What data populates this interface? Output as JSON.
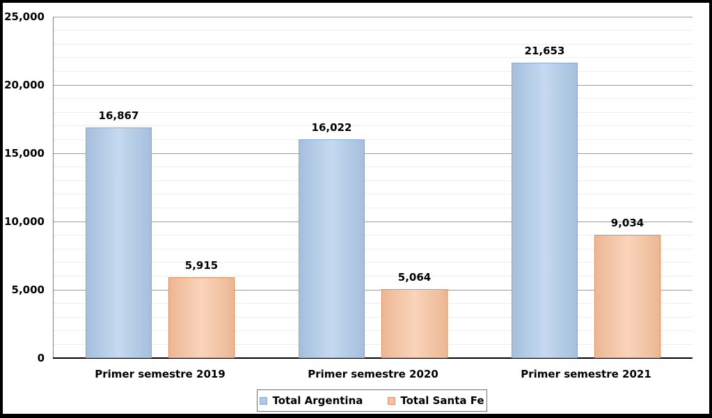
{
  "chart_data": {
    "type": "bar",
    "title": "",
    "xlabel": "",
    "ylabel": "",
    "categories": [
      "Primer semestre 2019",
      "Primer semestre 2020",
      "Primer semestre 2021"
    ],
    "series": [
      {
        "name": "Total Argentina",
        "values": [
          16867,
          16022,
          21653
        ],
        "value_labels": [
          "16,867",
          "16,022",
          "21,653"
        ],
        "fill_color": "#adc9e9",
        "border_color": "#83aad7"
      },
      {
        "name": "Total Santa Fe",
        "values": [
          5915,
          5064,
          9034
        ],
        "value_labels": [
          "5,915",
          "5,064",
          "9,034"
        ],
        "fill_color": "#f8c19d",
        "border_color": "#e58c5a"
      }
    ],
    "ylim": [
      0,
      25000
    ],
    "y_tick_labels": [
      "0",
      "5,000",
      "10,000",
      "15,000",
      "20,000",
      "25,000"
    ],
    "y_major_step": 5000,
    "y_minor_step": 1000,
    "grid": true,
    "legend_position": "bottom",
    "legend_labels": [
      "Total Argentina",
      "Total Santa Fe"
    ],
    "colors": {
      "major_gridline": "#9b9b9b",
      "minor_gridline": "#ededed",
      "y_axis_line": "#7f7f7f",
      "x_axis_line": "#000000",
      "text": "#000000",
      "legend_border": "#6e6e6e",
      "frame_border": "#000000",
      "background": "#ffffff"
    }
  }
}
